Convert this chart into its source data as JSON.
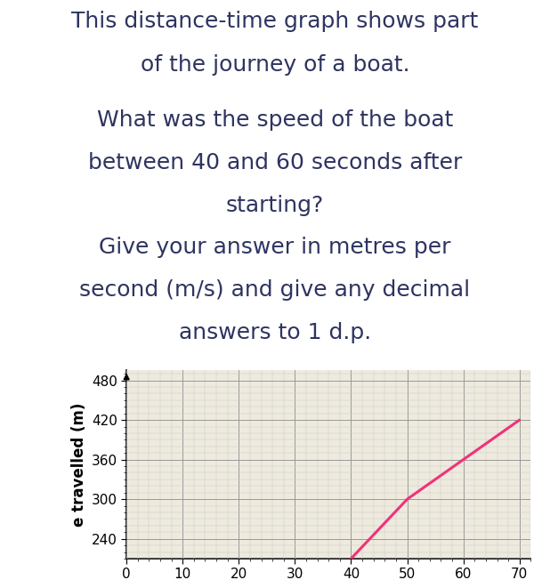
{
  "title_lines": [
    "This distance‑time graph shows part",
    "of the journey of a boat.",
    "What was the speed of the boat",
    "between 40 and 60 seconds after",
    "starting?",
    "Give your answer in metres per",
    "second (m/s) and give any decimal",
    "answers to 1 d.p."
  ],
  "title_color": "#2e3461",
  "text_background": "#ffffff",
  "chart_background": "#eeeade",
  "ylabel": "e travelled (m)",
  "yticks": [
    240,
    300,
    360,
    420,
    480
  ],
  "xticks": [
    0,
    10,
    20,
    30,
    40,
    50,
    60,
    70
  ],
  "xlim": [
    0,
    72
  ],
  "ylim": [
    210,
    495
  ],
  "line_color": "#f03278",
  "line_width": 2.2,
  "line_x": [
    40,
    50,
    70
  ],
  "line_y": [
    210,
    300,
    420
  ],
  "grid_major_color": "#999999",
  "grid_minor_color": "#cccccc",
  "grid_major_linewidth": 0.7,
  "grid_minor_linewidth": 0.35,
  "tick_fontsize": 11,
  "ylabel_fontsize": 12,
  "text_fontsize": 18,
  "text_fontsize_small": 17
}
